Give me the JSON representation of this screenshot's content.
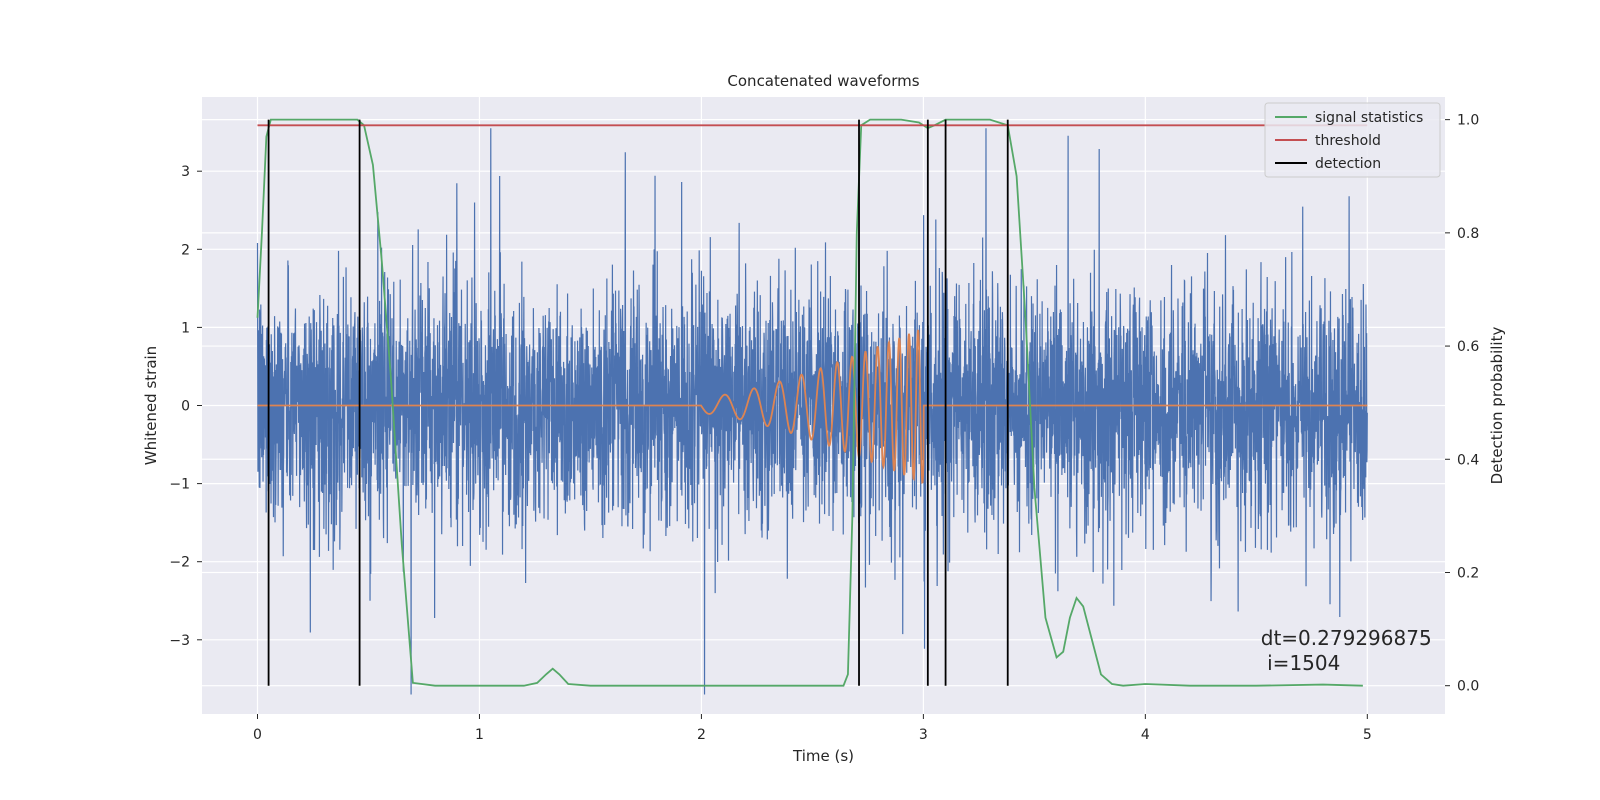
{
  "chart_data": {
    "type": "line",
    "title": "Concatenated waveforms",
    "xlabel": "Time (s)",
    "ylabel": "Whitened strain",
    "ylabel_right": "Detection probability",
    "xlim": [
      -0.25,
      5.35
    ],
    "ylim": [
      -3.95,
      3.95
    ],
    "ylim_right": [
      -0.05,
      1.04
    ],
    "x_ticks": [
      0,
      1,
      2,
      3,
      4,
      5
    ],
    "y_ticks": [
      -3,
      -2,
      -1,
      0,
      1,
      2,
      3
    ],
    "y_ticks_right": [
      0.0,
      0.2,
      0.4,
      0.6,
      0.8,
      1.0
    ],
    "y_tick_labels": [
      "−3",
      "−2",
      "−1",
      "0",
      "1",
      "2",
      "3"
    ],
    "y_tick_labels_right": [
      "0.0",
      "0.2",
      "0.4",
      "0.6",
      "0.8",
      "1.0"
    ],
    "grid": true,
    "legend_position": "top-right",
    "colors": {
      "strain": "#4c72b0",
      "waveform": "#dd8452",
      "signal_statistics": "#55a868",
      "threshold": "#c44e52",
      "detection": "#000000",
      "background": "#eaeaf2",
      "grid": "#ffffff"
    },
    "legend": [
      {
        "key": "signal_statistics",
        "label": "signal statistics"
      },
      {
        "key": "threshold",
        "label": "threshold"
      },
      {
        "key": "detection",
        "label": "detection"
      }
    ],
    "series": [
      {
        "name": "signal statistics",
        "axis": "right",
        "x": [
          0.0,
          0.02,
          0.04,
          0.06,
          0.1,
          0.2,
          0.3,
          0.4,
          0.45,
          0.48,
          0.52,
          0.56,
          0.6,
          0.65,
          0.7,
          0.8,
          1.0,
          1.2,
          1.26,
          1.3,
          1.33,
          1.36,
          1.4,
          1.5,
          2.0,
          2.5,
          2.64,
          2.66,
          2.68,
          2.7,
          2.72,
          2.76,
          2.8,
          2.9,
          2.98,
          3.02,
          3.05,
          3.1,
          3.2,
          3.3,
          3.38,
          3.42,
          3.46,
          3.5,
          3.55,
          3.6,
          3.63,
          3.66,
          3.69,
          3.72,
          3.76,
          3.8,
          3.85,
          3.9,
          4.0,
          4.2,
          4.5,
          4.8,
          4.98
        ],
        "y": [
          0.65,
          0.8,
          0.97,
          1.0,
          1.0,
          1.0,
          1.0,
          1.0,
          1.0,
          0.99,
          0.92,
          0.75,
          0.55,
          0.25,
          0.005,
          0.0,
          0.0,
          0.0,
          0.005,
          0.02,
          0.03,
          0.02,
          0.003,
          0.0,
          0.0,
          0.0,
          0.0,
          0.02,
          0.3,
          0.8,
          0.99,
          1.0,
          1.0,
          1.0,
          0.995,
          0.985,
          0.99,
          1.0,
          1.0,
          1.0,
          0.99,
          0.9,
          0.65,
          0.35,
          0.12,
          0.05,
          0.06,
          0.12,
          0.155,
          0.14,
          0.08,
          0.02,
          0.003,
          0.0,
          0.003,
          0.0,
          0.0,
          0.002,
          0.0
        ]
      },
      {
        "name": "threshold",
        "axis": "right",
        "x": [
          0.0,
          5.0
        ],
        "y": [
          0.99,
          0.99
        ]
      }
    ],
    "strain": {
      "name": "whitened strain",
      "x_range": [
        0.0,
        5.0
      ],
      "noise_sigma": 0.75
    },
    "waveform": {
      "name": "injected waveform",
      "x_range": [
        0.0,
        5.0
      ],
      "chirp_start": 2.0,
      "chirp_end": 3.0,
      "amplitude_start": 0.1,
      "amplitude_end": 1.0,
      "freq_start": 7,
      "freq_end": 26
    },
    "detections": [
      0.05,
      0.46,
      2.71,
      3.02,
      3.1,
      3.38
    ],
    "annotation": {
      "line1": "dt=0.279296875",
      "line2": " i=1504",
      "x": 4.52,
      "y": -3.0
    }
  }
}
